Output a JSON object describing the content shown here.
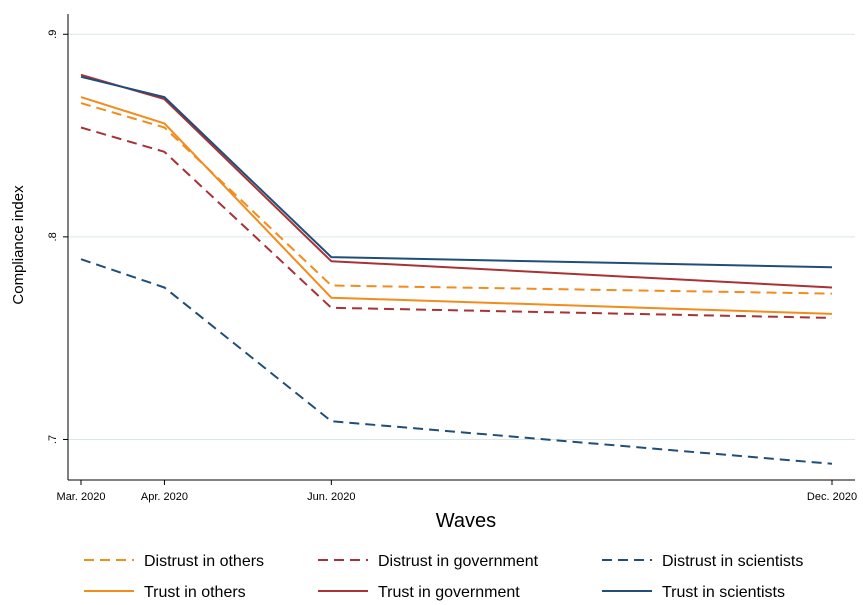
{
  "chart_data": {
    "type": "line",
    "xlabel": "Waves",
    "ylabel": "Compliance index",
    "x_ticks": [
      "Mar. 2020",
      "Apr. 2020",
      "Jun. 2020",
      "Dec. 2020"
    ],
    "x_months": [
      0,
      1,
      3,
      9
    ],
    "ylim": [
      0.68,
      0.91
    ],
    "y_ticks": [
      {
        "value": 0.7,
        "label": ".7"
      },
      {
        "value": 0.8,
        "label": ".8"
      },
      {
        "value": 0.9,
        "label": ".9"
      }
    ],
    "grid": "horizontal",
    "legend_position": "bottom",
    "series": [
      {
        "name": "Distrust in others",
        "color": "#f28c1c",
        "dash": true,
        "values": [
          0.866,
          0.854,
          0.776,
          0.772
        ]
      },
      {
        "name": "Distrust in government",
        "color": "#a83236",
        "dash": true,
        "values": [
          0.854,
          0.842,
          0.765,
          0.76
        ]
      },
      {
        "name": "Distrust in scientists",
        "color": "#1f4e79",
        "dash": true,
        "values": [
          0.789,
          0.775,
          0.709,
          0.688
        ]
      },
      {
        "name": "Trust in others",
        "color": "#f28c1c",
        "dash": false,
        "values": [
          0.869,
          0.856,
          0.77,
          0.762
        ]
      },
      {
        "name": "Trust in government",
        "color": "#a83236",
        "dash": false,
        "values": [
          0.88,
          0.868,
          0.788,
          0.775
        ]
      },
      {
        "name": "Trust in scientists",
        "color": "#1f4e79",
        "dash": false,
        "values": [
          0.879,
          0.869,
          0.79,
          0.785
        ]
      }
    ]
  }
}
